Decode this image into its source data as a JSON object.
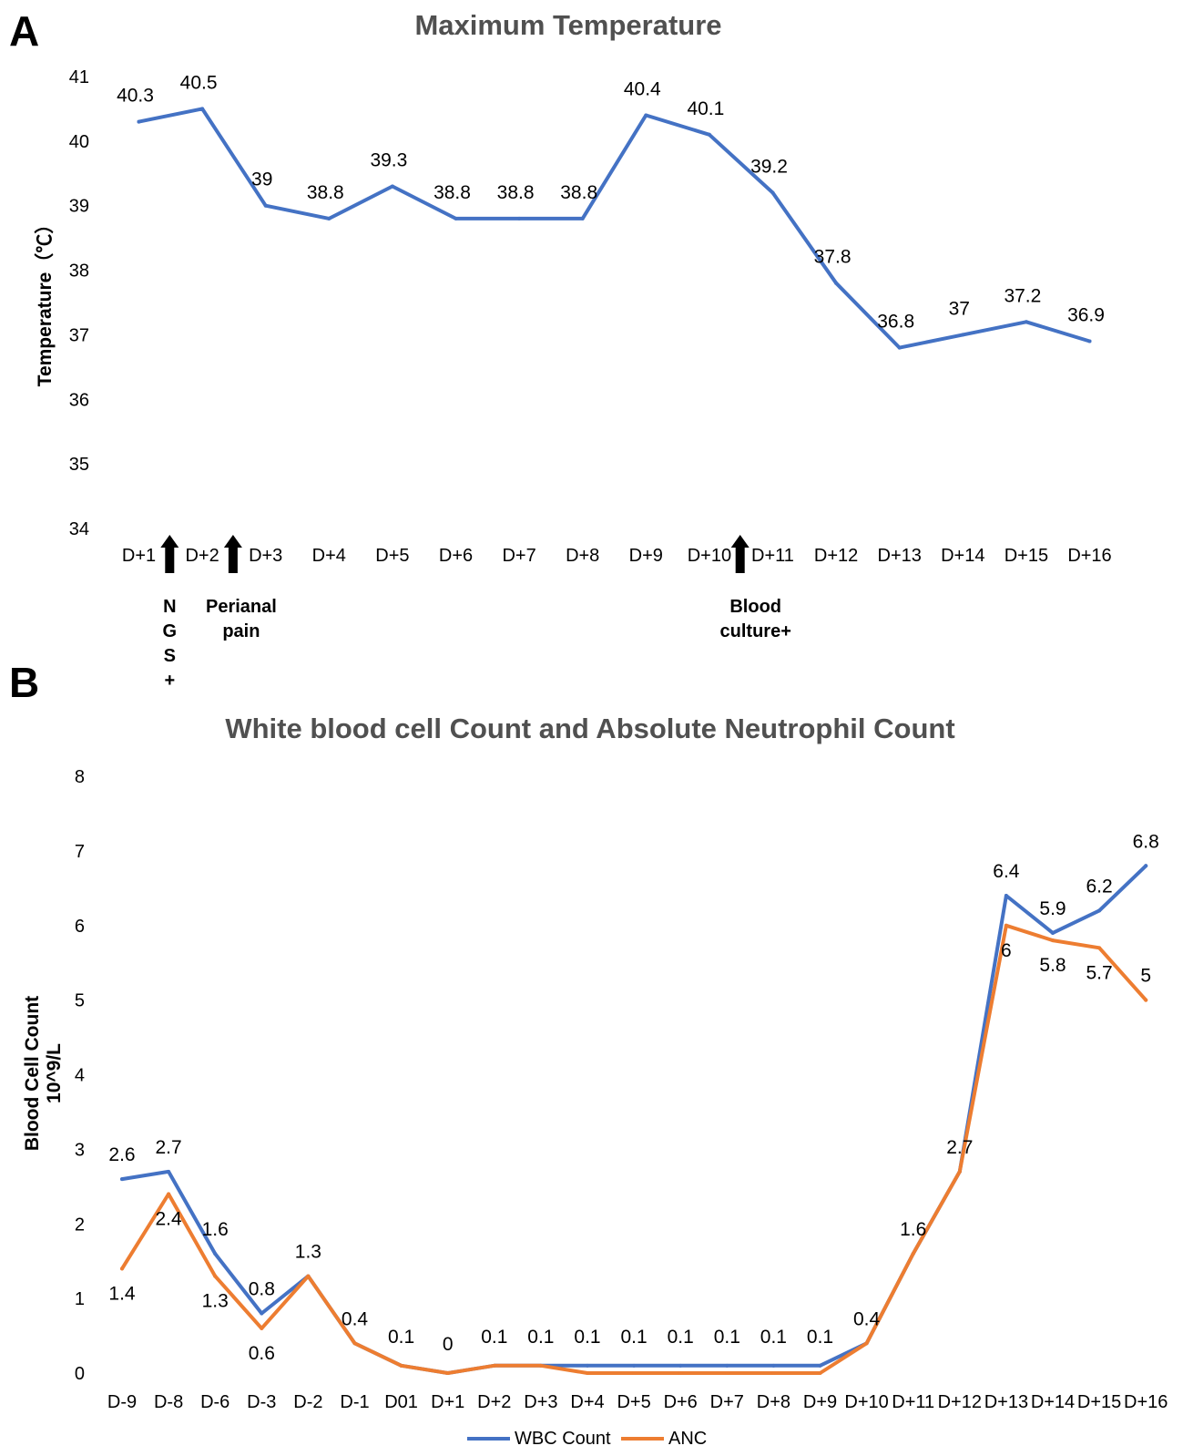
{
  "panels": {
    "A": "A",
    "B": "B"
  },
  "colors": {
    "temperature": "#4472C4",
    "wbc": "#4472C4",
    "anc": "#ED7D31"
  },
  "chart_data": [
    {
      "type": "line",
      "title": "Maximum Temperature",
      "ylabel": "Temperature（℃）",
      "xlabel": "",
      "ylim": [
        34,
        41
      ],
      "yticks": [
        "34",
        "35",
        "36",
        "37",
        "38",
        "39",
        "40",
        "41"
      ],
      "categories": [
        "D+1",
        "D+2",
        "D+3",
        "D+4",
        "D+5",
        "D+6",
        "D+7",
        "D+8",
        "D+9",
        "D+10",
        "D+11",
        "D+12",
        "D+13",
        "D+14",
        "D+15",
        "D+16"
      ],
      "series": [
        {
          "values": [
            40.3,
            40.5,
            39,
            38.8,
            39.3,
            38.8,
            38.8,
            38.8,
            40.4,
            40.1,
            39.2,
            37.8,
            36.8,
            37,
            37.2,
            36.9
          ],
          "labels": [
            "40.3",
            "40.5",
            "39",
            "38.8",
            "39.3",
            "38.8",
            "38.8",
            "38.8",
            "40.4",
            "40.1",
            "39.2",
            "37.8",
            "36.8",
            "37",
            "37.2",
            "36.9"
          ]
        }
      ],
      "grid": false,
      "annotations": [
        {
          "arrow_between": [
            "D+1",
            "D+2"
          ],
          "text": [
            "N",
            "G",
            "S",
            "+"
          ]
        },
        {
          "arrow_between": [
            "D+2",
            "D+3"
          ],
          "text": [
            "Perianal",
            "pain"
          ]
        },
        {
          "arrow_between": [
            "D+10",
            "D+11"
          ],
          "text": [
            "Blood",
            "culture+"
          ]
        }
      ]
    },
    {
      "type": "line",
      "title": "White blood cell Count and Absolute Neutrophil Count",
      "ylabel": [
        "Blood Cell Count",
        "10^9/L"
      ],
      "xlabel": "",
      "ylim": [
        0,
        8
      ],
      "yticks": [
        "0",
        "1",
        "2",
        "3",
        "4",
        "5",
        "6",
        "7",
        "8"
      ],
      "categories": [
        "D-9",
        "D-8",
        "D-6",
        "D-3",
        "D-2",
        "D-1",
        "D01",
        "D+1",
        "D+2",
        "D+3",
        "D+4",
        "D+5",
        "D+6",
        "D+7",
        "D+8",
        "D+9",
        "D+10",
        "D+11",
        "D+12",
        "D+13",
        "D+14",
        "D+15",
        "D+16"
      ],
      "series": [
        {
          "name": "WBC Count",
          "values": [
            2.6,
            2.7,
            1.6,
            0.8,
            1.3,
            0.4,
            0.1,
            0,
            0.1,
            0.1,
            0.1,
            0.1,
            0.1,
            0.1,
            0.1,
            0.1,
            0.4,
            1.6,
            2.7,
            6.4,
            5.9,
            6.2,
            6.8
          ],
          "labels": [
            "2.6",
            "2.7",
            "1.6",
            "0.8",
            "1.3",
            "0.4",
            "0.1",
            "0",
            "0.1",
            "0.1",
            "0.1",
            "0.1",
            "0.1",
            "0.1",
            "0.1",
            "0.1",
            "0.4",
            "1.6",
            "2.7",
            "6.4",
            "5.9",
            "6.2",
            "6.8"
          ]
        },
        {
          "name": "ANC",
          "values": [
            1.4,
            2.4,
            1.3,
            0.6,
            1.3,
            0.4,
            0.1,
            0,
            0.1,
            0.1,
            0,
            0,
            0,
            0,
            0,
            0,
            0.4,
            1.6,
            2.7,
            6,
            5.8,
            5.7,
            5
          ],
          "labels": [
            "1.4",
            "2.4",
            "1.3",
            "0.6",
            "",
            "",
            "",
            "",
            "",
            "",
            "",
            "",
            "",
            "",
            "",
            "",
            "",
            "",
            "",
            "6",
            "5.8",
            "5.7",
            "5"
          ]
        }
      ],
      "legend": "bottom",
      "grid": false
    }
  ]
}
